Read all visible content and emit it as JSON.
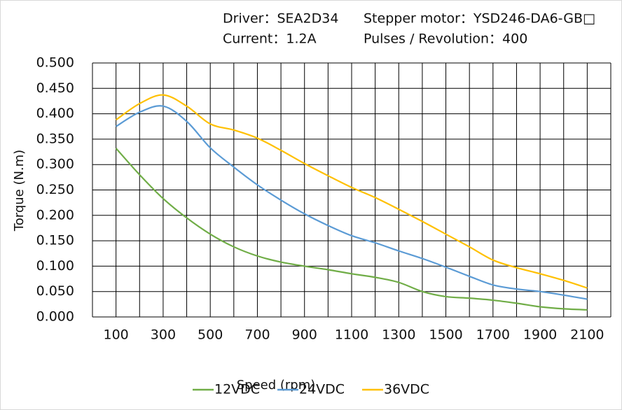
{
  "chart_data": {
    "type": "line",
    "header": [
      [
        "Driver：SEA2D34",
        "Stepper motor：YSD246-DA6-GB□"
      ],
      [
        "Current：1.2A",
        "Pulses / Revolution：400"
      ]
    ],
    "x_label": "Speed  (rpm)",
    "y_label": "Torque (N.m)",
    "x": [
      100,
      200,
      300,
      400,
      500,
      600,
      700,
      800,
      900,
      1000,
      1100,
      1200,
      1300,
      1400,
      1500,
      1600,
      1700,
      1800,
      1900,
      2000,
      2100
    ],
    "series": [
      {
        "name": "12VDC",
        "color": "#70ad47",
        "values": [
          0.332,
          0.28,
          0.233,
          0.195,
          0.163,
          0.138,
          0.12,
          0.108,
          0.1,
          0.093,
          0.085,
          0.078,
          0.068,
          0.05,
          0.04,
          0.037,
          0.033,
          0.027,
          0.02,
          0.016,
          0.014
        ]
      },
      {
        "name": "24VDC",
        "color": "#5b9bd5",
        "values": [
          0.375,
          0.403,
          0.415,
          0.385,
          0.333,
          0.295,
          0.26,
          0.23,
          0.203,
          0.18,
          0.16,
          0.146,
          0.13,
          0.115,
          0.098,
          0.08,
          0.063,
          0.055,
          0.05,
          0.043,
          0.035
        ]
      },
      {
        "name": "36VDC",
        "color": "#ffc000",
        "values": [
          0.388,
          0.42,
          0.437,
          0.415,
          0.38,
          0.368,
          0.352,
          0.328,
          0.302,
          0.278,
          0.255,
          0.235,
          0.212,
          0.188,
          0.163,
          0.138,
          0.112,
          0.097,
          0.085,
          0.072,
          0.057
        ]
      }
    ],
    "xlim": [
      0,
      2200
    ],
    "xticks": [
      100,
      300,
      500,
      700,
      900,
      1100,
      1300,
      1500,
      1700,
      1900,
      2100
    ],
    "x_gridlines": [
      0,
      100,
      200,
      300,
      400,
      500,
      600,
      700,
      800,
      900,
      1000,
      1100,
      1200,
      1300,
      1400,
      1500,
      1600,
      1700,
      1800,
      1900,
      2000,
      2100,
      2200
    ],
    "ylim": [
      0,
      0.5
    ],
    "yticks": [
      {
        "value": 0,
        "label": "0.000"
      },
      {
        "value": 0.05,
        "label": "0.050"
      },
      {
        "value": 0.1,
        "label": "0.100"
      },
      {
        "value": 0.15,
        "label": "0.150"
      },
      {
        "value": 0.2,
        "label": "0.200"
      },
      {
        "value": 0.25,
        "label": "0.250"
      },
      {
        "value": 0.3,
        "label": "0.300"
      },
      {
        "value": 0.35,
        "label": "0.350"
      },
      {
        "value": 0.4,
        "label": "0.400"
      },
      {
        "value": 0.45,
        "label": "0.450"
      },
      {
        "value": 0.5,
        "label": "0.500"
      }
    ],
    "grid": true,
    "legend": "bottom"
  }
}
